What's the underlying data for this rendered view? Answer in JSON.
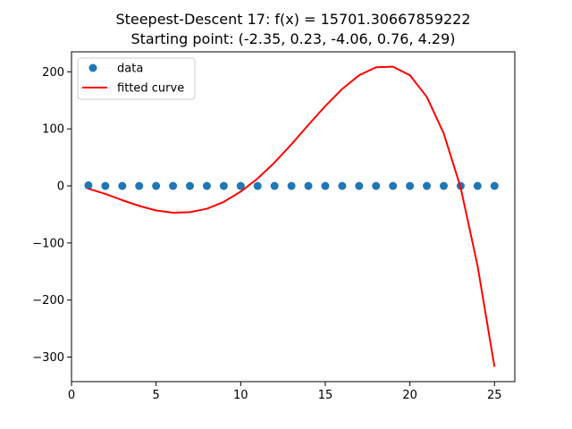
{
  "chart_data": {
    "type": "line",
    "title": "Steepest-Descent 17: f(x) = 15701.30667859222",
    "subtitle": "Starting point: (-2.35, 0.23, -4.06, 0.76, 4.29)",
    "xlabel": "",
    "ylabel": "",
    "xlim": [
      0.0,
      26.2
    ],
    "ylim": [
      -343,
      235
    ],
    "x_ticks": [
      0,
      5,
      10,
      15,
      20,
      25
    ],
    "y_ticks": [
      -300,
      -200,
      -100,
      0,
      100,
      200
    ],
    "x_tick_labels": [
      "0",
      "5",
      "10",
      "15",
      "20",
      "25"
    ],
    "y_tick_labels": [
      "−300",
      "−200",
      "−100",
      "0",
      "100",
      "200"
    ],
    "grid": false,
    "legend_position": "top-left",
    "series": [
      {
        "name": "data",
        "kind": "scatter",
        "color": "#1f77b4",
        "x": [
          1,
          2,
          3,
          4,
          5,
          6,
          7,
          8,
          9,
          10,
          11,
          12,
          13,
          14,
          15,
          16,
          17,
          18,
          19,
          20,
          21,
          22,
          23,
          24,
          25
        ],
        "y": [
          1,
          0,
          0,
          0,
          0,
          0,
          0,
          0,
          0,
          0,
          0,
          0,
          0,
          0,
          0,
          0,
          0,
          0,
          0,
          0,
          0,
          0,
          0,
          0,
          0
        ]
      },
      {
        "name": "fitted curve",
        "kind": "line",
        "color": "#ff0000",
        "x": [
          1,
          2,
          3,
          4,
          5,
          6,
          7,
          8,
          9,
          10,
          11,
          12,
          13,
          14,
          15,
          16,
          17,
          18,
          19,
          20,
          21,
          22,
          23,
          24,
          25
        ],
        "y": [
          -5,
          -14,
          -25,
          -35,
          -43,
          -47,
          -46,
          -40,
          -28,
          -10,
          13,
          41,
          73,
          107,
          140,
          170,
          194,
          208,
          209,
          194,
          156,
          92,
          -3,
          -140,
          -317
        ]
      }
    ]
  }
}
